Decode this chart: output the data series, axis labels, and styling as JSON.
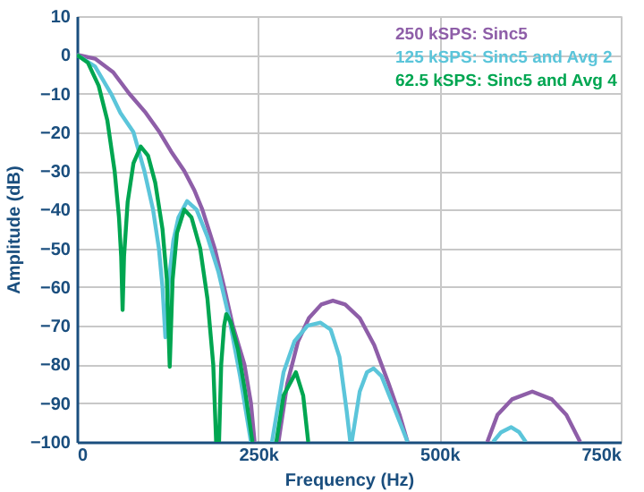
{
  "chart_data": {
    "type": "line",
    "xlabel": "Frequency (Hz)",
    "ylabel": "Amplitude (dB)",
    "xlim": [
      0,
      750000
    ],
    "ylim": [
      -100,
      10
    ],
    "xticks": [
      0,
      {
        "value": 250000,
        "label": "250k"
      },
      {
        "value": 500000,
        "label": "500k"
      },
      {
        "value": 750000,
        "label": "750k"
      }
    ],
    "yticks": [
      {
        "value": -100,
        "label": "−100"
      },
      {
        "value": -90,
        "label": "−90"
      },
      {
        "value": -80,
        "label": "−80"
      },
      {
        "value": -70,
        "label": "−70"
      },
      {
        "value": -60,
        "label": "−60"
      },
      {
        "value": -50,
        "label": "−50"
      },
      {
        "value": -40,
        "label": "−40"
      },
      {
        "value": -30,
        "label": "−30"
      },
      {
        "value": -20,
        "label": "−20"
      },
      {
        "value": -10,
        "label": "−10"
      },
      0,
      10
    ],
    "grid": true,
    "legend": "top right",
    "marker": "none",
    "line_style": "solid",
    "series": [
      {
        "name": "250 kSPS: Sinc5",
        "color": "#8e5ea8",
        "x": [
          0,
          25000,
          50000,
          72000,
          95000,
          114000,
          130000,
          148000,
          162000,
          173000,
          190000,
          203000,
          215000,
          231000,
          240000,
          245000,
          260000,
          278000,
          290000,
          305000,
          320000,
          337000,
          353000,
          370000,
          390000,
          410000,
          430000,
          445000,
          456000,
          510000,
          566000,
          580000,
          600000,
          628000,
          655000,
          675000,
          694000
        ],
        "values": [
          0,
          -1,
          -4.5,
          -10,
          -15,
          -20,
          -25,
          -30,
          -35,
          -40,
          -50,
          -60,
          -70,
          -80,
          -90,
          -100,
          null,
          -100,
          -85,
          -74,
          -68,
          -64.5,
          -63.5,
          -64.5,
          -68,
          -75,
          -85,
          -93,
          -100,
          null,
          -100,
          -93,
          -89,
          -87,
          -89,
          -93,
          -100
        ]
      },
      {
        "name": "125 kSPS: Sinc5 and Avg 2",
        "color": "#5bc5da",
        "x": [
          0,
          25000,
          47000,
          60000,
          78000,
          93000,
          105000,
          113000,
          118000,
          122000,
          127000,
          133000,
          140000,
          152000,
          165000,
          180000,
          195000,
          210000,
          225000,
          240000,
          255000,
          269000,
          285000,
          300000,
          318000,
          336000,
          350000,
          362000,
          372000,
          377000,
          378000,
          379000,
          390000,
          400000,
          409000,
          420000,
          435000,
          456000,
          520000,
          574000,
          585000,
          599000,
          610000,
          619000
        ],
        "values": [
          0,
          -3,
          -10,
          -15,
          -20,
          -30,
          -40,
          -50,
          -60,
          -73,
          -58,
          -48,
          -42,
          -37.8,
          -40,
          -47,
          -56,
          -68,
          -83,
          -100,
          null,
          -100,
          -82,
          -74,
          -70,
          -69.2,
          -71,
          -78,
          -92,
          -100,
          null,
          -100,
          -87,
          -82,
          -81,
          -83,
          -90,
          -100,
          null,
          -100,
          -97.5,
          -96.2,
          -97.5,
          -100
        ]
      },
      {
        "name": "62.5 kSPS: Sinc5 and Avg 4",
        "color": "#00a651",
        "x": [
          0,
          15000,
          30000,
          42000,
          52000,
          58000,
          61000,
          63000,
          65000,
          70000,
          78000,
          88000,
          98000,
          108000,
          118000,
          124000,
          128000,
          132000,
          138000,
          148000,
          158000,
          170000,
          180000,
          188000,
          192000,
          194000,
          196000,
          199000,
          203000,
          206000,
          212000,
          222000,
          232000,
          242000,
          258000,
          275000,
          285000,
          302000,
          312000,
          319000
        ],
        "values": [
          0,
          -2,
          -8,
          -17,
          -30,
          -42,
          -52,
          -65.9,
          -52,
          -38,
          -28,
          -23.7,
          -26,
          -33,
          -45,
          -58,
          -80.6,
          -58,
          -46,
          -40,
          -42,
          -50,
          -63,
          -80,
          -100,
          null,
          -100,
          -80,
          -70,
          -67,
          -69,
          -76,
          -87,
          -100,
          null,
          -100,
          -88,
          -82,
          -88,
          -100
        ]
      }
    ]
  }
}
